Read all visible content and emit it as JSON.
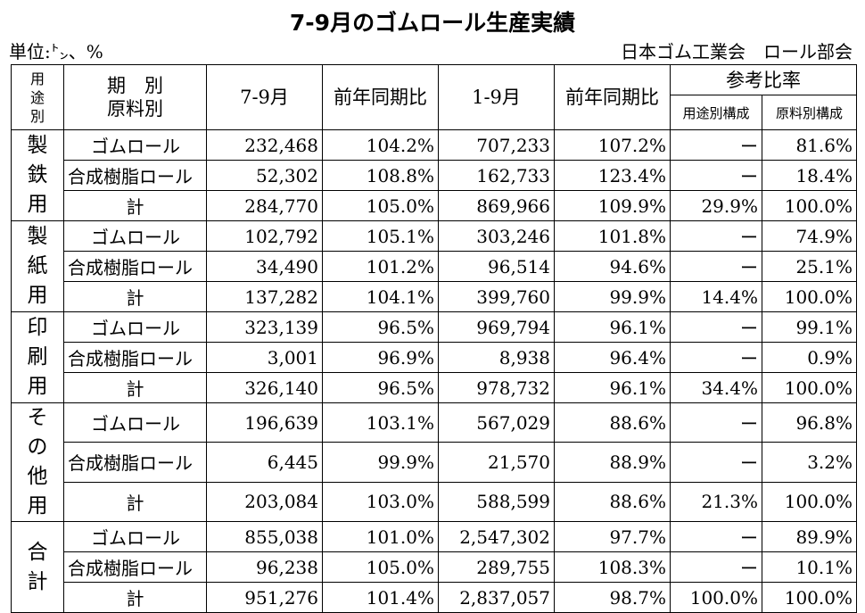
{
  "title": "7-9月のゴムロール生産実績",
  "unit": "単位:㌧、%",
  "org": "日本ゴム工業会　ロール部会",
  "headers": {
    "yoto": [
      "用",
      "途",
      "別"
    ],
    "kibetsu_line1": "期　別",
    "kibetsu_line2": "原料別",
    "q3": "7-9月",
    "yoy1": "前年同期比",
    "ytd": "1-9月",
    "yoy2": "前年同期比",
    "sanko": "参考比率",
    "yoto_kosei": "用途別構成",
    "genryo_kosei": "原料別構成"
  },
  "groups": [
    {
      "label": [
        "製",
        "鉄",
        "用"
      ],
      "rows": [
        {
          "name": "ゴムロール",
          "q3": "232,468",
          "yoy1": "104.2%",
          "ytd": "707,233",
          "yoy2": "107.2%",
          "use": "ー",
          "mat": "81.6%"
        },
        {
          "name": "合成樹脂ロール",
          "q3": "52,302",
          "yoy1": "108.8%",
          "ytd": "162,733",
          "yoy2": "123.4%",
          "use": "ー",
          "mat": "18.4%"
        },
        {
          "name": "計",
          "q3": "284,770",
          "yoy1": "105.0%",
          "ytd": "869,966",
          "yoy2": "109.9%",
          "use": "29.9%",
          "mat": "100.0%"
        }
      ]
    },
    {
      "label": [
        "製",
        "紙",
        "用"
      ],
      "rows": [
        {
          "name": "ゴムロール",
          "q3": "102,792",
          "yoy1": "105.1%",
          "ytd": "303,246",
          "yoy2": "101.8%",
          "use": "ー",
          "mat": "74.9%"
        },
        {
          "name": "合成樹脂ロール",
          "q3": "34,490",
          "yoy1": "101.2%",
          "ytd": "96,514",
          "yoy2": "94.6%",
          "use": "ー",
          "mat": "25.1%"
        },
        {
          "name": "計",
          "q3": "137,282",
          "yoy1": "104.1%",
          "ytd": "399,760",
          "yoy2": "99.9%",
          "use": "14.4%",
          "mat": "100.0%"
        }
      ]
    },
    {
      "label": [
        "印",
        "刷",
        "用"
      ],
      "rows": [
        {
          "name": "ゴムロール",
          "q3": "323,139",
          "yoy1": "96.5%",
          "ytd": "969,794",
          "yoy2": "96.1%",
          "use": "ー",
          "mat": "99.1%"
        },
        {
          "name": "合成樹脂ロール",
          "q3": "3,001",
          "yoy1": "96.9%",
          "ytd": "8,938",
          "yoy2": "96.4%",
          "use": "ー",
          "mat": "0.9%"
        },
        {
          "name": "計",
          "q3": "326,140",
          "yoy1": "96.5%",
          "ytd": "978,732",
          "yoy2": "96.1%",
          "use": "34.4%",
          "mat": "100.0%"
        }
      ]
    },
    {
      "label": [
        "そ",
        "の",
        "他",
        "用"
      ],
      "rows": [
        {
          "name": "ゴムロール",
          "q3": "196,639",
          "yoy1": "103.1%",
          "ytd": "567,029",
          "yoy2": "88.6%",
          "use": "ー",
          "mat": "96.8%"
        },
        {
          "name": "合成樹脂ロール",
          "q3": "6,445",
          "yoy1": "99.9%",
          "ytd": "21,570",
          "yoy2": "88.9%",
          "use": "ー",
          "mat": "3.2%"
        },
        {
          "name": "計",
          "q3": "203,084",
          "yoy1": "103.0%",
          "ytd": "588,599",
          "yoy2": "88.6%",
          "use": "21.3%",
          "mat": "100.0%"
        }
      ]
    },
    {
      "label": [
        "合",
        "計"
      ],
      "rows": [
        {
          "name": "ゴムロール",
          "q3": "855,038",
          "yoy1": "101.0%",
          "ytd": "2,547,302",
          "yoy2": "97.7%",
          "use": "ー",
          "mat": "89.9%"
        },
        {
          "name": "合成樹脂ロール",
          "q3": "96,238",
          "yoy1": "105.0%",
          "ytd": "289,755",
          "yoy2": "108.3%",
          "use": "ー",
          "mat": "10.1%"
        },
        {
          "name": "計",
          "q3": "951,276",
          "yoy1": "101.4%",
          "ytd": "2,837,057",
          "yoy2": "98.7%",
          "use": "100.0%",
          "mat": "100.0%"
        }
      ]
    }
  ]
}
